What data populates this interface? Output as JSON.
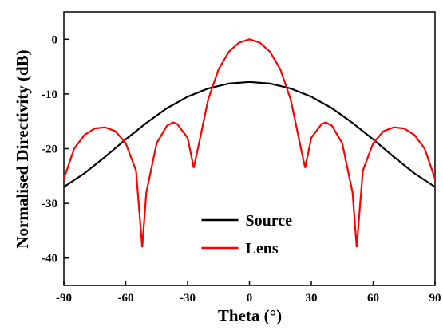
{
  "chart_data": {
    "type": "line",
    "x_label": "Theta (°)",
    "y_label": "Normalised Directivity (dB)",
    "xlim": [
      -90,
      90
    ],
    "xticks": [
      -90,
      -60,
      -30,
      0,
      30,
      60,
      90
    ],
    "ylim": [
      -45,
      5
    ],
    "yticks": [
      -40,
      -30,
      -20,
      -10,
      0
    ],
    "legend": "lower center",
    "series": [
      {
        "name": "Source",
        "color": "#000000",
        "x": [
          -90,
          -80,
          -70,
          -60,
          -50,
          -40,
          -30,
          -20,
          -10,
          0,
          10,
          20,
          30,
          40,
          50,
          60,
          70,
          80,
          90
        ],
        "values": [
          -27,
          -24.5,
          -21.5,
          -18.3,
          -15.3,
          -12.6,
          -10.5,
          -9,
          -8.1,
          -7.8,
          -8.1,
          -9,
          -10.5,
          -12.6,
          -15.3,
          -18.3,
          -21.5,
          -24.5,
          -27
        ]
      },
      {
        "name": "Lens",
        "color": "#ff0000",
        "x": [
          -90,
          -85,
          -80,
          -75,
          -70,
          -65,
          -60,
          -55,
          -52,
          -50,
          -45,
          -40,
          -37,
          -35,
          -30,
          -27,
          -25,
          -20,
          -15,
          -10,
          -5,
          0,
          5,
          10,
          15,
          20,
          25,
          27,
          30,
          35,
          37,
          40,
          45,
          50,
          52,
          55,
          60,
          65,
          70,
          75,
          80,
          85,
          90
        ],
        "values": [
          -25.5,
          -20,
          -17.5,
          -16.3,
          -16.1,
          -16.8,
          -19,
          -24,
          -38,
          -28,
          -19,
          -15.8,
          -15.2,
          -15.5,
          -18,
          -23.5,
          -20,
          -11,
          -5.5,
          -2.3,
          -0.6,
          0,
          -0.6,
          -2.3,
          -5.5,
          -11,
          -20,
          -23.5,
          -18,
          -15.5,
          -15.2,
          -15.8,
          -19,
          -28,
          -38,
          -24,
          -19,
          -16.8,
          -16.1,
          -16.3,
          -17.5,
          -20,
          -25.5
        ]
      }
    ]
  }
}
